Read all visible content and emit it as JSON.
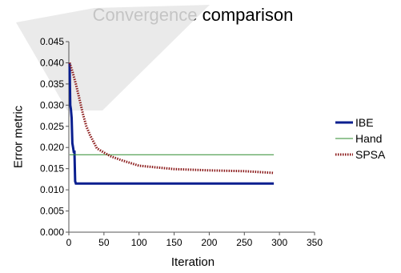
{
  "chart_data": {
    "type": "line",
    "title": "Convergence comparison",
    "xlabel": "Iteration",
    "ylabel": "Error metric",
    "xlim": [
      0,
      350
    ],
    "ylim": [
      0,
      0.045
    ],
    "xticks": [
      0,
      50,
      100,
      150,
      200,
      250,
      300,
      350
    ],
    "yticks": [
      0.0,
      0.005,
      0.01,
      0.015,
      0.02,
      0.025,
      0.03,
      0.035,
      0.04,
      0.045
    ],
    "ytick_labels": [
      "0.000",
      "0.005",
      "0.010",
      "0.015",
      "0.020",
      "0.025",
      "0.030",
      "0.035",
      "0.040",
      "0.045"
    ],
    "xtick_labels": [
      "0",
      "50",
      "100",
      "150",
      "200",
      "250",
      "300",
      "350"
    ],
    "grid": false,
    "legend_position": "right",
    "series": [
      {
        "name": "IBE",
        "color": "#0a1f8f",
        "style": "solid-thick",
        "x": [
          1,
          2,
          3,
          4,
          5,
          6,
          7,
          8,
          9,
          10,
          20,
          50,
          100,
          150,
          200,
          250,
          292
        ],
        "y": [
          0.04,
          0.03,
          0.029,
          0.027,
          0.021,
          0.02,
          0.019,
          0.019,
          0.012,
          0.0115,
          0.0115,
          0.0115,
          0.0115,
          0.0115,
          0.0115,
          0.0115,
          0.0115
        ]
      },
      {
        "name": "Hand",
        "color": "#2e8b2e",
        "style": "solid-thin",
        "x": [
          1,
          292
        ],
        "y": [
          0.0183,
          0.0183
        ]
      },
      {
        "name": "SPSA",
        "color": "#8b1a1a",
        "style": "dotted",
        "x": [
          1,
          5,
          10,
          15,
          20,
          25,
          30,
          40,
          50,
          60,
          75,
          100,
          150,
          200,
          250,
          292
        ],
        "y": [
          0.04,
          0.038,
          0.035,
          0.0315,
          0.028,
          0.025,
          0.023,
          0.0198,
          0.0188,
          0.0179,
          0.017,
          0.0157,
          0.0149,
          0.0146,
          0.0144,
          0.014
        ]
      }
    ]
  }
}
